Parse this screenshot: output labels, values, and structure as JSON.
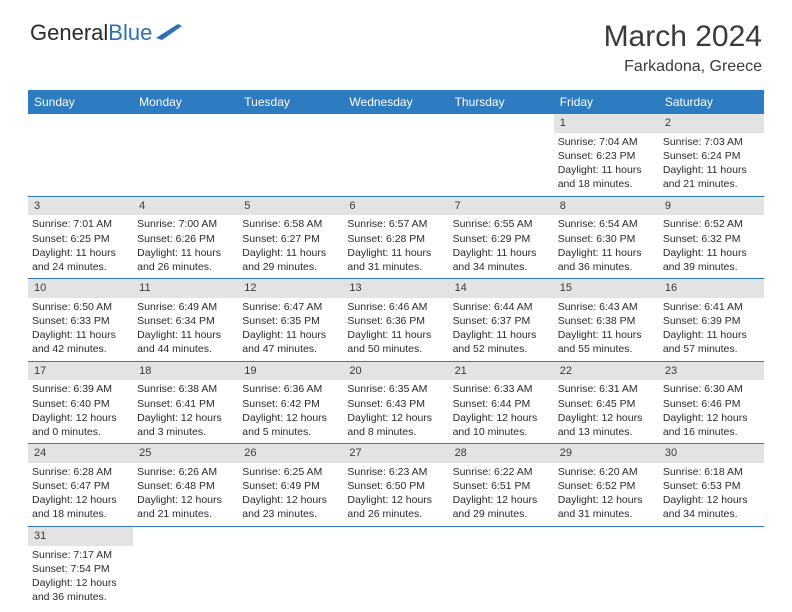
{
  "logo": {
    "text1": "General",
    "text2": "Blue"
  },
  "title": {
    "month": "March 2024",
    "location": "Farkadona, Greece"
  },
  "weekdays": [
    "Sunday",
    "Monday",
    "Tuesday",
    "Wednesday",
    "Thursday",
    "Friday",
    "Saturday"
  ],
  "colors": {
    "header_bg": "#2d7bc0",
    "header_text": "#ffffff",
    "daynum_bg": "#e3e3e3",
    "text": "#2a2a2a",
    "border": "#2d7bc0"
  },
  "rows": [
    [
      {
        "n": "",
        "sr": "",
        "ss": "",
        "dl": ""
      },
      {
        "n": "",
        "sr": "",
        "ss": "",
        "dl": ""
      },
      {
        "n": "",
        "sr": "",
        "ss": "",
        "dl": ""
      },
      {
        "n": "",
        "sr": "",
        "ss": "",
        "dl": ""
      },
      {
        "n": "",
        "sr": "",
        "ss": "",
        "dl": ""
      },
      {
        "n": "1",
        "sr": "Sunrise: 7:04 AM",
        "ss": "Sunset: 6:23 PM",
        "dl": "Daylight: 11 hours and 18 minutes."
      },
      {
        "n": "2",
        "sr": "Sunrise: 7:03 AM",
        "ss": "Sunset: 6:24 PM",
        "dl": "Daylight: 11 hours and 21 minutes."
      }
    ],
    [
      {
        "n": "3",
        "sr": "Sunrise: 7:01 AM",
        "ss": "Sunset: 6:25 PM",
        "dl": "Daylight: 11 hours and 24 minutes."
      },
      {
        "n": "4",
        "sr": "Sunrise: 7:00 AM",
        "ss": "Sunset: 6:26 PM",
        "dl": "Daylight: 11 hours and 26 minutes."
      },
      {
        "n": "5",
        "sr": "Sunrise: 6:58 AM",
        "ss": "Sunset: 6:27 PM",
        "dl": "Daylight: 11 hours and 29 minutes."
      },
      {
        "n": "6",
        "sr": "Sunrise: 6:57 AM",
        "ss": "Sunset: 6:28 PM",
        "dl": "Daylight: 11 hours and 31 minutes."
      },
      {
        "n": "7",
        "sr": "Sunrise: 6:55 AM",
        "ss": "Sunset: 6:29 PM",
        "dl": "Daylight: 11 hours and 34 minutes."
      },
      {
        "n": "8",
        "sr": "Sunrise: 6:54 AM",
        "ss": "Sunset: 6:30 PM",
        "dl": "Daylight: 11 hours and 36 minutes."
      },
      {
        "n": "9",
        "sr": "Sunrise: 6:52 AM",
        "ss": "Sunset: 6:32 PM",
        "dl": "Daylight: 11 hours and 39 minutes."
      }
    ],
    [
      {
        "n": "10",
        "sr": "Sunrise: 6:50 AM",
        "ss": "Sunset: 6:33 PM",
        "dl": "Daylight: 11 hours and 42 minutes."
      },
      {
        "n": "11",
        "sr": "Sunrise: 6:49 AM",
        "ss": "Sunset: 6:34 PM",
        "dl": "Daylight: 11 hours and 44 minutes."
      },
      {
        "n": "12",
        "sr": "Sunrise: 6:47 AM",
        "ss": "Sunset: 6:35 PM",
        "dl": "Daylight: 11 hours and 47 minutes."
      },
      {
        "n": "13",
        "sr": "Sunrise: 6:46 AM",
        "ss": "Sunset: 6:36 PM",
        "dl": "Daylight: 11 hours and 50 minutes."
      },
      {
        "n": "14",
        "sr": "Sunrise: 6:44 AM",
        "ss": "Sunset: 6:37 PM",
        "dl": "Daylight: 11 hours and 52 minutes."
      },
      {
        "n": "15",
        "sr": "Sunrise: 6:43 AM",
        "ss": "Sunset: 6:38 PM",
        "dl": "Daylight: 11 hours and 55 minutes."
      },
      {
        "n": "16",
        "sr": "Sunrise: 6:41 AM",
        "ss": "Sunset: 6:39 PM",
        "dl": "Daylight: 11 hours and 57 minutes."
      }
    ],
    [
      {
        "n": "17",
        "sr": "Sunrise: 6:39 AM",
        "ss": "Sunset: 6:40 PM",
        "dl": "Daylight: 12 hours and 0 minutes."
      },
      {
        "n": "18",
        "sr": "Sunrise: 6:38 AM",
        "ss": "Sunset: 6:41 PM",
        "dl": "Daylight: 12 hours and 3 minutes."
      },
      {
        "n": "19",
        "sr": "Sunrise: 6:36 AM",
        "ss": "Sunset: 6:42 PM",
        "dl": "Daylight: 12 hours and 5 minutes."
      },
      {
        "n": "20",
        "sr": "Sunrise: 6:35 AM",
        "ss": "Sunset: 6:43 PM",
        "dl": "Daylight: 12 hours and 8 minutes."
      },
      {
        "n": "21",
        "sr": "Sunrise: 6:33 AM",
        "ss": "Sunset: 6:44 PM",
        "dl": "Daylight: 12 hours and 10 minutes."
      },
      {
        "n": "22",
        "sr": "Sunrise: 6:31 AM",
        "ss": "Sunset: 6:45 PM",
        "dl": "Daylight: 12 hours and 13 minutes."
      },
      {
        "n": "23",
        "sr": "Sunrise: 6:30 AM",
        "ss": "Sunset: 6:46 PM",
        "dl": "Daylight: 12 hours and 16 minutes."
      }
    ],
    [
      {
        "n": "24",
        "sr": "Sunrise: 6:28 AM",
        "ss": "Sunset: 6:47 PM",
        "dl": "Daylight: 12 hours and 18 minutes."
      },
      {
        "n": "25",
        "sr": "Sunrise: 6:26 AM",
        "ss": "Sunset: 6:48 PM",
        "dl": "Daylight: 12 hours and 21 minutes."
      },
      {
        "n": "26",
        "sr": "Sunrise: 6:25 AM",
        "ss": "Sunset: 6:49 PM",
        "dl": "Daylight: 12 hours and 23 minutes."
      },
      {
        "n": "27",
        "sr": "Sunrise: 6:23 AM",
        "ss": "Sunset: 6:50 PM",
        "dl": "Daylight: 12 hours and 26 minutes."
      },
      {
        "n": "28",
        "sr": "Sunrise: 6:22 AM",
        "ss": "Sunset: 6:51 PM",
        "dl": "Daylight: 12 hours and 29 minutes."
      },
      {
        "n": "29",
        "sr": "Sunrise: 6:20 AM",
        "ss": "Sunset: 6:52 PM",
        "dl": "Daylight: 12 hours and 31 minutes."
      },
      {
        "n": "30",
        "sr": "Sunrise: 6:18 AM",
        "ss": "Sunset: 6:53 PM",
        "dl": "Daylight: 12 hours and 34 minutes."
      }
    ],
    [
      {
        "n": "31",
        "sr": "Sunrise: 7:17 AM",
        "ss": "Sunset: 7:54 PM",
        "dl": "Daylight: 12 hours and 36 minutes."
      },
      {
        "n": "",
        "sr": "",
        "ss": "",
        "dl": ""
      },
      {
        "n": "",
        "sr": "",
        "ss": "",
        "dl": ""
      },
      {
        "n": "",
        "sr": "",
        "ss": "",
        "dl": ""
      },
      {
        "n": "",
        "sr": "",
        "ss": "",
        "dl": ""
      },
      {
        "n": "",
        "sr": "",
        "ss": "",
        "dl": ""
      },
      {
        "n": "",
        "sr": "",
        "ss": "",
        "dl": ""
      }
    ]
  ]
}
